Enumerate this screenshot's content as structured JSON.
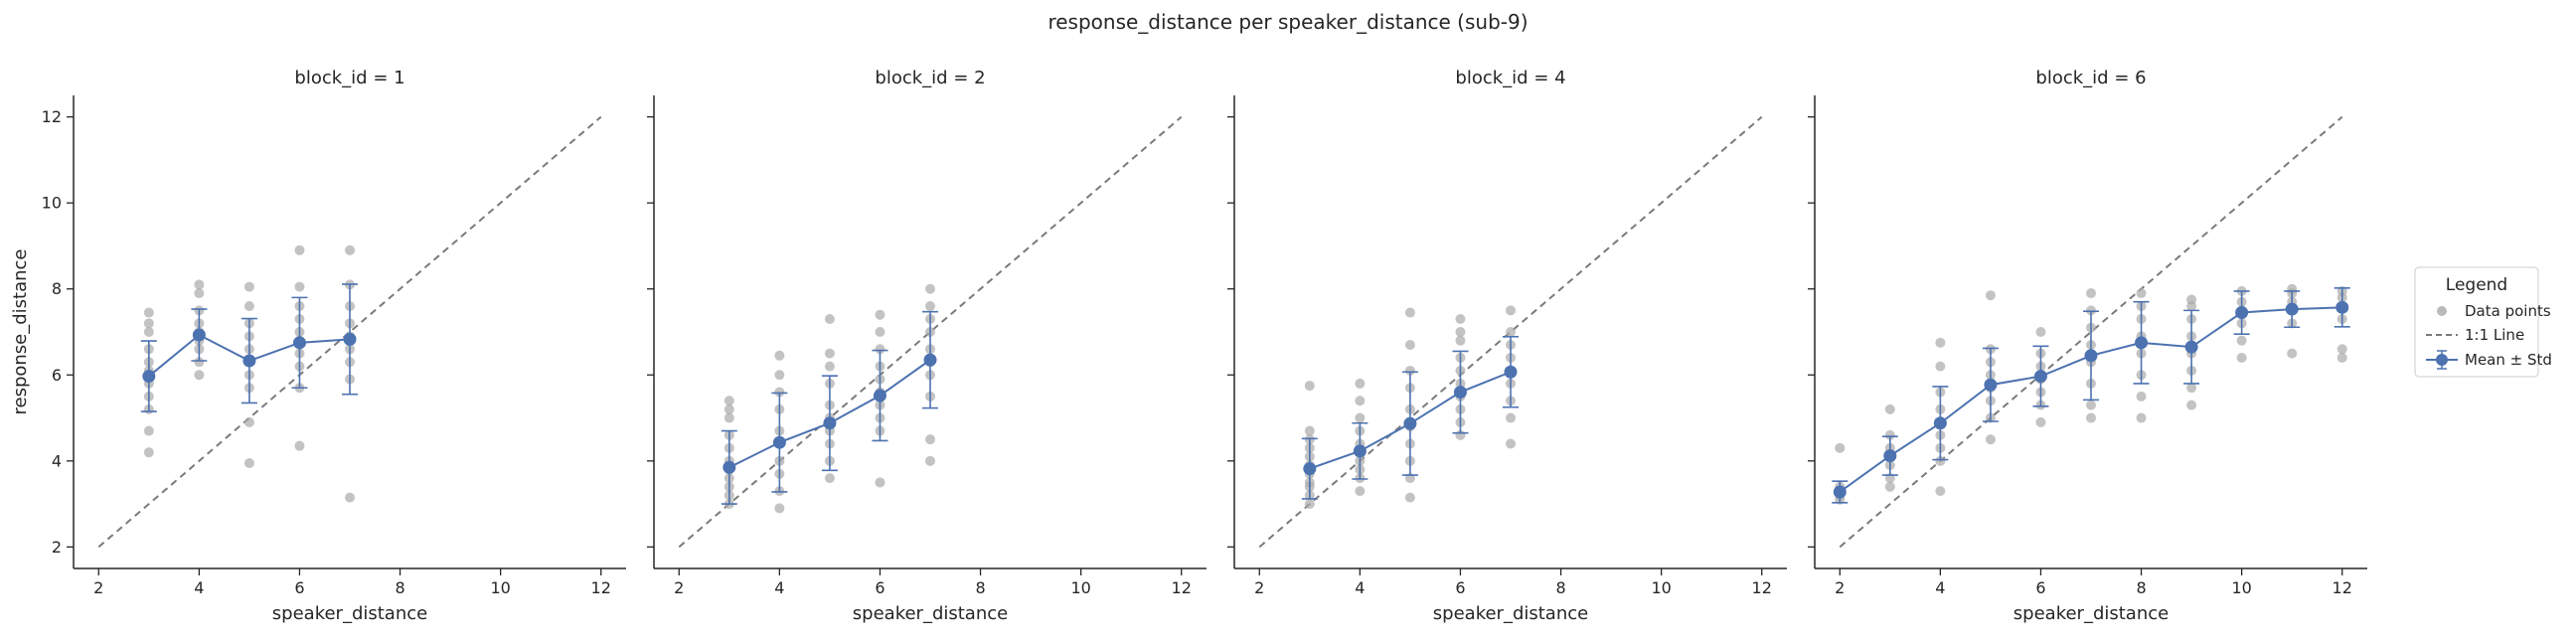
{
  "chart_data": {
    "type": "scatter",
    "title": "response_distance per speaker_distance (sub-9)",
    "xlabel": "speaker_distance",
    "ylabel": "response_distance",
    "xlim": [
      1.5,
      12.5
    ],
    "ylim": [
      1.5,
      12.5
    ],
    "xticks": [
      2,
      4,
      6,
      8,
      10,
      12
    ],
    "yticks": [
      2,
      4,
      6,
      8,
      10,
      12
    ],
    "identity_line": [
      [
        2,
        2
      ],
      [
        12,
        12
      ]
    ],
    "colors": {
      "points": "#a9a9a9",
      "mean": "#4c72b0",
      "identity": "#7a7a7a",
      "axis": "#262626"
    },
    "legend": {
      "title": "Legend",
      "position": "right",
      "entries": [
        "Data points",
        "1:1 Line",
        "Mean ± Std"
      ]
    },
    "panels": [
      {
        "title": "block_id = 1",
        "x": [
          3,
          4,
          5,
          6,
          7
        ],
        "mean": [
          5.97,
          6.93,
          6.33,
          6.75,
          6.83
        ],
        "std": [
          0.82,
          0.6,
          0.98,
          1.05,
          1.28
        ],
        "points": [
          [
            3,
            4.2
          ],
          [
            3,
            4.7
          ],
          [
            3,
            5.2
          ],
          [
            3,
            5.5
          ],
          [
            3,
            5.8
          ],
          [
            3,
            6.1
          ],
          [
            3,
            6.3
          ],
          [
            3,
            6.6
          ],
          [
            3,
            7.0
          ],
          [
            3,
            7.2
          ],
          [
            3,
            7.45
          ],
          [
            4,
            6.0
          ],
          [
            4,
            6.3
          ],
          [
            4,
            6.6
          ],
          [
            4,
            6.8
          ],
          [
            4,
            7.0
          ],
          [
            4,
            7.2
          ],
          [
            4,
            7.5
          ],
          [
            4,
            7.9
          ],
          [
            4,
            8.1
          ],
          [
            5,
            3.95
          ],
          [
            5,
            4.9
          ],
          [
            5,
            5.7
          ],
          [
            5,
            6.0
          ],
          [
            5,
            6.3
          ],
          [
            5,
            6.6
          ],
          [
            5,
            6.9
          ],
          [
            5,
            7.2
          ],
          [
            5,
            7.6
          ],
          [
            5,
            8.05
          ],
          [
            6,
            4.35
          ],
          [
            6,
            5.7
          ],
          [
            6,
            6.2
          ],
          [
            6,
            6.5
          ],
          [
            6,
            6.8
          ],
          [
            6,
            7.0
          ],
          [
            6,
            7.3
          ],
          [
            6,
            7.6
          ],
          [
            6,
            8.05
          ],
          [
            6,
            8.9
          ],
          [
            7,
            3.15
          ],
          [
            7,
            5.9
          ],
          [
            7,
            6.3
          ],
          [
            7,
            6.6
          ],
          [
            7,
            6.9
          ],
          [
            7,
            7.2
          ],
          [
            7,
            7.6
          ],
          [
            7,
            8.1
          ],
          [
            7,
            8.9
          ]
        ]
      },
      {
        "title": "block_id = 2",
        "x": [
          3,
          4,
          5,
          6,
          7
        ],
        "mean": [
          3.85,
          4.43,
          4.88,
          5.52,
          6.35
        ],
        "std": [
          0.85,
          1.15,
          1.1,
          1.05,
          1.12
        ],
        "points": [
          [
            3,
            3.0
          ],
          [
            3,
            3.2
          ],
          [
            3,
            3.4
          ],
          [
            3,
            3.6
          ],
          [
            3,
            3.8
          ],
          [
            3,
            4.0
          ],
          [
            3,
            4.3
          ],
          [
            3,
            4.6
          ],
          [
            3,
            5.0
          ],
          [
            3,
            5.2
          ],
          [
            3,
            5.4
          ],
          [
            4,
            2.9
          ],
          [
            4,
            3.3
          ],
          [
            4,
            3.7
          ],
          [
            4,
            4.0
          ],
          [
            4,
            4.4
          ],
          [
            4,
            4.7
          ],
          [
            4,
            5.2
          ],
          [
            4,
            5.6
          ],
          [
            4,
            6.0
          ],
          [
            4,
            6.45
          ],
          [
            5,
            3.6
          ],
          [
            5,
            4.0
          ],
          [
            5,
            4.4
          ],
          [
            5,
            4.7
          ],
          [
            5,
            5.0
          ],
          [
            5,
            5.3
          ],
          [
            5,
            5.8
          ],
          [
            5,
            6.2
          ],
          [
            5,
            6.5
          ],
          [
            5,
            7.3
          ],
          [
            6,
            3.5
          ],
          [
            6,
            4.7
          ],
          [
            6,
            5.0
          ],
          [
            6,
            5.3
          ],
          [
            6,
            5.6
          ],
          [
            6,
            5.9
          ],
          [
            6,
            6.2
          ],
          [
            6,
            6.6
          ],
          [
            6,
            7.0
          ],
          [
            6,
            7.4
          ],
          [
            7,
            4.0
          ],
          [
            7,
            4.5
          ],
          [
            7,
            5.5
          ],
          [
            7,
            6.0
          ],
          [
            7,
            6.3
          ],
          [
            7,
            6.6
          ],
          [
            7,
            7.0
          ],
          [
            7,
            7.3
          ],
          [
            7,
            7.6
          ],
          [
            7,
            8.0
          ]
        ]
      },
      {
        "title": "block_id = 4",
        "x": [
          3,
          4,
          5,
          6,
          7
        ],
        "mean": [
          3.82,
          4.23,
          4.87,
          5.6,
          6.07
        ],
        "std": [
          0.7,
          0.65,
          1.2,
          0.95,
          0.82
        ],
        "points": [
          [
            3,
            3.0
          ],
          [
            3,
            3.2
          ],
          [
            3,
            3.4
          ],
          [
            3,
            3.5
          ],
          [
            3,
            3.7
          ],
          [
            3,
            3.9
          ],
          [
            3,
            4.1
          ],
          [
            3,
            4.3
          ],
          [
            3,
            4.5
          ],
          [
            3,
            4.7
          ],
          [
            3,
            5.75
          ],
          [
            4,
            3.3
          ],
          [
            4,
            3.6
          ],
          [
            4,
            3.8
          ],
          [
            4,
            4.0
          ],
          [
            4,
            4.2
          ],
          [
            4,
            4.4
          ],
          [
            4,
            4.7
          ],
          [
            4,
            5.0
          ],
          [
            4,
            5.4
          ],
          [
            4,
            5.8
          ],
          [
            5,
            3.15
          ],
          [
            5,
            3.6
          ],
          [
            5,
            4.0
          ],
          [
            5,
            4.4
          ],
          [
            5,
            4.8
          ],
          [
            5,
            5.2
          ],
          [
            5,
            5.7
          ],
          [
            5,
            6.1
          ],
          [
            5,
            6.7
          ],
          [
            5,
            7.45
          ],
          [
            6,
            4.6
          ],
          [
            6,
            4.9
          ],
          [
            6,
            5.2
          ],
          [
            6,
            5.5
          ],
          [
            6,
            5.8
          ],
          [
            6,
            6.1
          ],
          [
            6,
            6.4
          ],
          [
            6,
            6.8
          ],
          [
            6,
            7.0
          ],
          [
            6,
            7.3
          ],
          [
            7,
            4.4
          ],
          [
            7,
            5.0
          ],
          [
            7,
            5.4
          ],
          [
            7,
            5.8
          ],
          [
            7,
            6.1
          ],
          [
            7,
            6.4
          ],
          [
            7,
            6.7
          ],
          [
            7,
            7.0
          ],
          [
            7,
            7.5
          ]
        ]
      },
      {
        "title": "block_id = 6",
        "x": [
          2,
          3,
          4,
          5,
          6,
          7,
          8,
          9,
          10,
          11,
          12
        ],
        "mean": [
          3.28,
          4.12,
          4.88,
          5.77,
          5.97,
          6.45,
          6.75,
          6.65,
          7.45,
          7.53,
          7.57
        ],
        "std": [
          0.25,
          0.45,
          0.85,
          0.85,
          0.7,
          1.03,
          0.95,
          0.85,
          0.5,
          0.42,
          0.45
        ],
        "points": [
          [
            2,
            3.1
          ],
          [
            2,
            3.2
          ],
          [
            2,
            3.3
          ],
          [
            2,
            3.4
          ],
          [
            2,
            4.3
          ],
          [
            3,
            3.4
          ],
          [
            3,
            3.6
          ],
          [
            3,
            3.9
          ],
          [
            3,
            4.1
          ],
          [
            3,
            4.3
          ],
          [
            3,
            4.6
          ],
          [
            3,
            5.2
          ],
          [
            4,
            3.3
          ],
          [
            4,
            4.0
          ],
          [
            4,
            4.3
          ],
          [
            4,
            4.6
          ],
          [
            4,
            4.9
          ],
          [
            4,
            5.2
          ],
          [
            4,
            5.6
          ],
          [
            4,
            6.2
          ],
          [
            4,
            6.75
          ],
          [
            5,
            4.5
          ],
          [
            5,
            5.0
          ],
          [
            5,
            5.4
          ],
          [
            5,
            5.7
          ],
          [
            5,
            6.0
          ],
          [
            5,
            6.3
          ],
          [
            5,
            6.6
          ],
          [
            5,
            7.85
          ],
          [
            6,
            4.9
          ],
          [
            6,
            5.3
          ],
          [
            6,
            5.6
          ],
          [
            6,
            5.9
          ],
          [
            6,
            6.2
          ],
          [
            6,
            6.5
          ],
          [
            6,
            7.0
          ],
          [
            7,
            5.0
          ],
          [
            7,
            5.3
          ],
          [
            7,
            5.8
          ],
          [
            7,
            6.3
          ],
          [
            7,
            6.7
          ],
          [
            7,
            7.1
          ],
          [
            7,
            7.5
          ],
          [
            7,
            7.9
          ],
          [
            8,
            5.0
          ],
          [
            8,
            5.5
          ],
          [
            8,
            6.0
          ],
          [
            8,
            6.5
          ],
          [
            8,
            6.9
          ],
          [
            8,
            7.3
          ],
          [
            8,
            7.6
          ],
          [
            8,
            7.9
          ],
          [
            9,
            5.3
          ],
          [
            9,
            5.7
          ],
          [
            9,
            6.1
          ],
          [
            9,
            6.5
          ],
          [
            9,
            6.9
          ],
          [
            9,
            7.3
          ],
          [
            9,
            7.6
          ],
          [
            9,
            7.75
          ],
          [
            10,
            6.4
          ],
          [
            10,
            6.8
          ],
          [
            10,
            7.2
          ],
          [
            10,
            7.5
          ],
          [
            10,
            7.7
          ],
          [
            10,
            7.95
          ],
          [
            11,
            6.5
          ],
          [
            11,
            7.2
          ],
          [
            11,
            7.5
          ],
          [
            11,
            7.7
          ],
          [
            11,
            7.9
          ],
          [
            11,
            8.0
          ],
          [
            12,
            6.4
          ],
          [
            12,
            6.6
          ],
          [
            12,
            7.3
          ],
          [
            12,
            7.6
          ],
          [
            12,
            7.8
          ],
          [
            12,
            7.95
          ]
        ]
      }
    ]
  }
}
